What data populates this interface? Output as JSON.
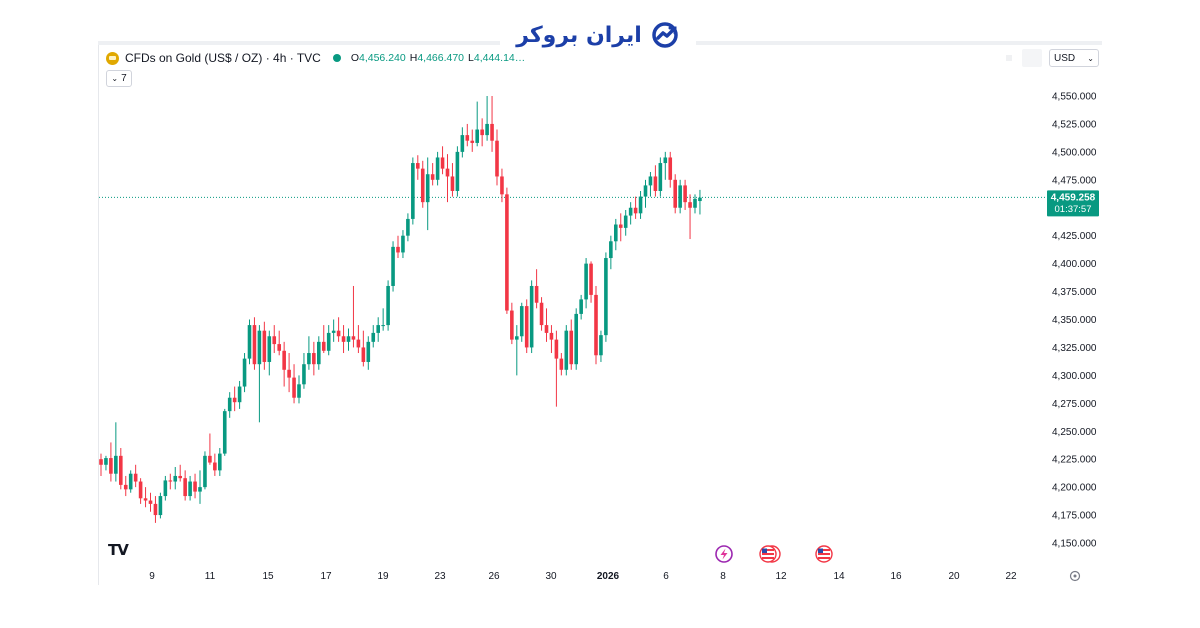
{
  "brand": {
    "name": "ایران بروکر"
  },
  "legend": {
    "symbol": "CFDs on Gold (US$ / OZ) · 4h · TVC",
    "ohlc": [
      {
        "key": "O",
        "value": "4,456.240"
      },
      {
        "key": "H",
        "value": "4,466.470"
      },
      {
        "key": "L",
        "value": "4,444.14…"
      }
    ],
    "collapse_count": "7"
  },
  "currency": "USD",
  "price_label": {
    "price": "4,459.258",
    "countdown": "01:37:57",
    "color": "#089981"
  },
  "colors": {
    "up": "#089981",
    "down": "#f23645",
    "axis_text": "#131722"
  },
  "event_icons": [
    "lightning-icon",
    "us-flag-icon",
    "us-flag-icon"
  ],
  "chart_data": {
    "type": "candlestick",
    "title": "CFDs on Gold (US$ / OZ) · 4h · TVC",
    "ylim": [
      4145,
      4555
    ],
    "y_ticks": [
      "4,150.000",
      "4,175.000",
      "4,200.000",
      "4,225.000",
      "4,250.000",
      "4,275.000",
      "4,300.000",
      "4,325.000",
      "4,350.000",
      "4,375.000",
      "4,400.000",
      "4,425.000",
      "4,450.000",
      "4,475.000",
      "4,500.000",
      "4,525.000",
      "4,550.000"
    ],
    "y_tick_values": [
      4150,
      4175,
      4200,
      4225,
      4250,
      4275,
      4300,
      4325,
      4350,
      4375,
      4400,
      4425,
      4450,
      4475,
      4500,
      4525,
      4550
    ],
    "x_tick_labels": [
      "9",
      "11",
      "15",
      "17",
      "19",
      "23",
      "26",
      "30",
      "2026",
      "6",
      "8",
      "12",
      "14",
      "16",
      "20",
      "22"
    ],
    "last_price": 4459.258,
    "candles": [
      [
        4225,
        4230,
        4210,
        4220
      ],
      [
        4220,
        4228,
        4215,
        4226
      ],
      [
        4226,
        4240,
        4205,
        4212
      ],
      [
        4212,
        4258,
        4205,
        4228
      ],
      [
        4228,
        4235,
        4198,
        4202
      ],
      [
        4202,
        4210,
        4192,
        4198
      ],
      [
        4198,
        4215,
        4195,
        4212
      ],
      [
        4212,
        4220,
        4200,
        4205
      ],
      [
        4205,
        4208,
        4185,
        4190
      ],
      [
        4190,
        4200,
        4182,
        4188
      ],
      [
        4188,
        4195,
        4178,
        4185
      ],
      [
        4185,
        4192,
        4168,
        4175
      ],
      [
        4175,
        4195,
        4172,
        4192
      ],
      [
        4192,
        4210,
        4188,
        4206
      ],
      [
        4206,
        4212,
        4198,
        4205
      ],
      [
        4205,
        4218,
        4198,
        4210
      ],
      [
        4210,
        4220,
        4205,
        4208
      ],
      [
        4208,
        4215,
        4188,
        4192
      ],
      [
        4192,
        4210,
        4188,
        4205
      ],
      [
        4205,
        4212,
        4190,
        4196
      ],
      [
        4196,
        4215,
        4185,
        4200
      ],
      [
        4200,
        4232,
        4198,
        4228
      ],
      [
        4228,
        4248,
        4220,
        4222
      ],
      [
        4222,
        4230,
        4210,
        4215
      ],
      [
        4215,
        4235,
        4210,
        4230
      ],
      [
        4230,
        4270,
        4228,
        4268
      ],
      [
        4268,
        4285,
        4262,
        4280
      ],
      [
        4280,
        4290,
        4268,
        4276
      ],
      [
        4276,
        4295,
        4270,
        4290
      ],
      [
        4290,
        4320,
        4285,
        4315
      ],
      [
        4315,
        4350,
        4310,
        4345
      ],
      [
        4345,
        4352,
        4305,
        4310
      ],
      [
        4310,
        4345,
        4258,
        4340
      ],
      [
        4340,
        4348,
        4305,
        4312
      ],
      [
        4312,
        4340,
        4300,
        4335
      ],
      [
        4335,
        4345,
        4320,
        4328
      ],
      [
        4328,
        4340,
        4318,
        4322
      ],
      [
        4322,
        4330,
        4290,
        4305
      ],
      [
        4305,
        4320,
        4285,
        4298
      ],
      [
        4298,
        4310,
        4275,
        4280
      ],
      [
        4280,
        4300,
        4275,
        4292
      ],
      [
        4292,
        4320,
        4288,
        4310
      ],
      [
        4310,
        4335,
        4305,
        4320
      ],
      [
        4320,
        4330,
        4300,
        4310
      ],
      [
        4310,
        4335,
        4305,
        4330
      ],
      [
        4330,
        4345,
        4320,
        4322
      ],
      [
        4322,
        4345,
        4318,
        4338
      ],
      [
        4338,
        4350,
        4330,
        4340
      ],
      [
        4340,
        4352,
        4330,
        4335
      ],
      [
        4335,
        4345,
        4320,
        4330
      ],
      [
        4330,
        4342,
        4322,
        4335
      ],
      [
        4335,
        4380,
        4325,
        4332
      ],
      [
        4332,
        4345,
        4320,
        4325
      ],
      [
        4325,
        4340,
        4308,
        4312
      ],
      [
        4312,
        4335,
        4305,
        4330
      ],
      [
        4330,
        4345,
        4325,
        4338
      ],
      [
        4338,
        4352,
        4330,
        4345
      ],
      [
        4345,
        4360,
        4340,
        4345
      ],
      [
        4345,
        4385,
        4340,
        4380
      ],
      [
        4380,
        4420,
        4375,
        4415
      ],
      [
        4415,
        4425,
        4405,
        4410
      ],
      [
        4410,
        4430,
        4405,
        4425
      ],
      [
        4425,
        4445,
        4420,
        4440
      ],
      [
        4440,
        4495,
        4435,
        4490
      ],
      [
        4490,
        4497,
        4475,
        4485
      ],
      [
        4485,
        4492,
        4450,
        4455
      ],
      [
        4455,
        4495,
        4430,
        4480
      ],
      [
        4480,
        4490,
        4470,
        4475
      ],
      [
        4475,
        4500,
        4470,
        4495
      ],
      [
        4495,
        4505,
        4480,
        4485
      ],
      [
        4485,
        4498,
        4455,
        4478
      ],
      [
        4478,
        4490,
        4460,
        4465
      ],
      [
        4465,
        4505,
        4460,
        4500
      ],
      [
        4500,
        4522,
        4495,
        4515
      ],
      [
        4515,
        4525,
        4505,
        4510
      ],
      [
        4510,
        4520,
        4500,
        4508
      ],
      [
        4508,
        4545,
        4505,
        4520
      ],
      [
        4520,
        4530,
        4505,
        4515
      ],
      [
        4515,
        4550,
        4510,
        4525
      ],
      [
        4525,
        4550,
        4500,
        4510
      ],
      [
        4510,
        4520,
        4470,
        4478
      ],
      [
        4478,
        4485,
        4455,
        4462
      ],
      [
        4462,
        4468,
        4355,
        4358
      ],
      [
        4358,
        4365,
        4328,
        4332
      ],
      [
        4332,
        4345,
        4300,
        4335
      ],
      [
        4335,
        4365,
        4330,
        4362
      ],
      [
        4362,
        4368,
        4320,
        4325
      ],
      [
        4325,
        4385,
        4320,
        4380
      ],
      [
        4380,
        4395,
        4360,
        4365
      ],
      [
        4365,
        4370,
        4340,
        4345
      ],
      [
        4345,
        4360,
        4330,
        4338
      ],
      [
        4338,
        4345,
        4320,
        4332
      ],
      [
        4332,
        4340,
        4272,
        4315
      ],
      [
        4315,
        4320,
        4300,
        4305
      ],
      [
        4305,
        4345,
        4300,
        4340
      ],
      [
        4340,
        4350,
        4305,
        4310
      ],
      [
        4310,
        4360,
        4305,
        4355
      ],
      [
        4355,
        4372,
        4350,
        4368
      ],
      [
        4368,
        4405,
        4360,
        4400
      ],
      [
        4400,
        4402,
        4365,
        4372
      ],
      [
        4372,
        4380,
        4310,
        4318
      ],
      [
        4318,
        4340,
        4312,
        4336
      ],
      [
        4336,
        4410,
        4330,
        4405
      ],
      [
        4405,
        4425,
        4395,
        4420
      ],
      [
        4420,
        4440,
        4412,
        4435
      ],
      [
        4435,
        4445,
        4420,
        4432
      ],
      [
        4432,
        4448,
        4425,
        4443
      ],
      [
        4443,
        4455,
        4435,
        4450
      ],
      [
        4450,
        4460,
        4440,
        4445
      ],
      [
        4445,
        4465,
        4440,
        4460
      ],
      [
        4460,
        4475,
        4450,
        4470
      ],
      [
        4470,
        4482,
        4460,
        4478
      ],
      [
        4478,
        4488,
        4460,
        4465
      ],
      [
        4465,
        4495,
        4460,
        4490
      ],
      [
        4490,
        4500,
        4475,
        4495
      ],
      [
        4495,
        4500,
        4468,
        4475
      ],
      [
        4475,
        4480,
        4445,
        4450
      ],
      [
        4450,
        4475,
        4445,
        4470
      ],
      [
        4470,
        4475,
        4448,
        4455
      ],
      [
        4455,
        4462,
        4422,
        4450
      ],
      [
        4450,
        4462,
        4445,
        4458
      ],
      [
        4456,
        4466,
        4444,
        4459
      ]
    ]
  }
}
